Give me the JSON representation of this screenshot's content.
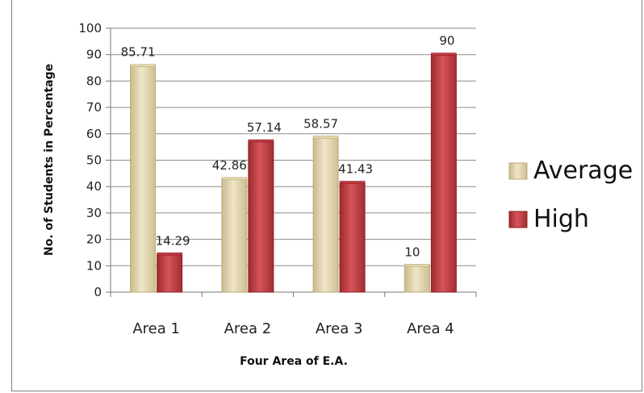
{
  "chart_data": {
    "type": "bar",
    "title": "",
    "xlabel": "Four Area of E.A.",
    "ylabel": "No. of Students in Percentage",
    "ylim": [
      0,
      100
    ],
    "yticks": [
      0,
      10,
      20,
      30,
      40,
      50,
      60,
      70,
      80,
      90,
      100
    ],
    "categories": [
      "Area 1",
      "Area 2",
      "Area 3",
      "Area 4"
    ],
    "series": [
      {
        "name": "Average",
        "values": [
          85.71,
          42.86,
          58.57,
          10
        ],
        "labels": [
          "85.71",
          "42.86",
          "58.57",
          "10"
        ],
        "color": "#e3d7ae",
        "edge": "#b9ab7b"
      },
      {
        "name": "High",
        "values": [
          14.29,
          57.14,
          41.43,
          90
        ],
        "labels": [
          "14.29",
          "57.14",
          "41.43",
          "90"
        ],
        "color": "#c0393e",
        "edge": "#8e2226"
      }
    ],
    "grid": true,
    "legend_position": "right"
  }
}
